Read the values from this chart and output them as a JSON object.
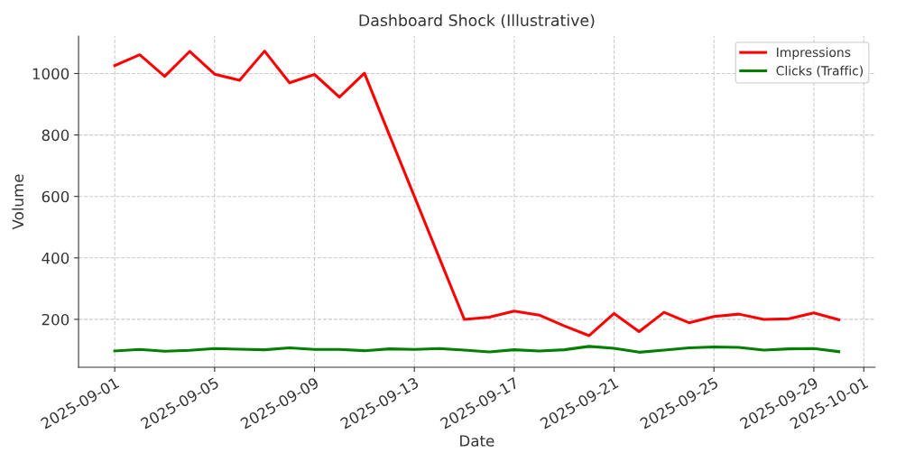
{
  "chart_data": {
    "type": "line",
    "title": "Dashboard Shock (Illustrative)",
    "xlabel": "Date",
    "ylabel": "Volume",
    "x": [
      "2025-09-01",
      "2025-09-02",
      "2025-09-03",
      "2025-09-04",
      "2025-09-05",
      "2025-09-06",
      "2025-09-07",
      "2025-09-08",
      "2025-09-09",
      "2025-09-10",
      "2025-09-11",
      "2025-09-12",
      "2025-09-13",
      "2025-09-14",
      "2025-09-15",
      "2025-09-16",
      "2025-09-17",
      "2025-09-18",
      "2025-09-19",
      "2025-09-20",
      "2025-09-21",
      "2025-09-22",
      "2025-09-23",
      "2025-09-24",
      "2025-09-25",
      "2025-09-26",
      "2025-09-27",
      "2025-09-28",
      "2025-09-29",
      "2025-09-30"
    ],
    "series": [
      {
        "name": "Impressions",
        "color": "#ff0000",
        "values": [
          1026,
          1061,
          991,
          1072,
          998,
          978,
          1073,
          970,
          997,
          923,
          1001,
          800,
          600,
          400,
          200,
          207,
          227,
          214,
          179,
          147,
          219,
          160,
          223,
          189,
          209,
          217,
          200,
          202,
          221,
          199
        ]
      },
      {
        "name": "Clicks (Traffic)",
        "color": "#008000",
        "values": [
          97,
          102,
          96,
          99,
          105,
          103,
          101,
          107,
          102,
          102,
          98,
          104,
          102,
          105,
          100,
          94,
          101,
          97,
          101,
          112,
          106,
          93,
          100,
          107,
          110,
          109,
          100,
          104,
          105,
          95
        ]
      }
    ],
    "xlim": [
      "2025-08-30T13:12",
      "2025-10-01T10:48"
    ],
    "xticks": [
      "2025-09-01",
      "2025-09-05",
      "2025-09-09",
      "2025-09-13",
      "2025-09-17",
      "2025-09-21",
      "2025-09-25",
      "2025-09-29",
      "2025-10-01"
    ],
    "ylim": [
      44,
      1122
    ],
    "yticks": [
      200,
      400,
      600,
      800,
      1000
    ],
    "grid": true,
    "legend": "top right",
    "line_style": "solid"
  }
}
